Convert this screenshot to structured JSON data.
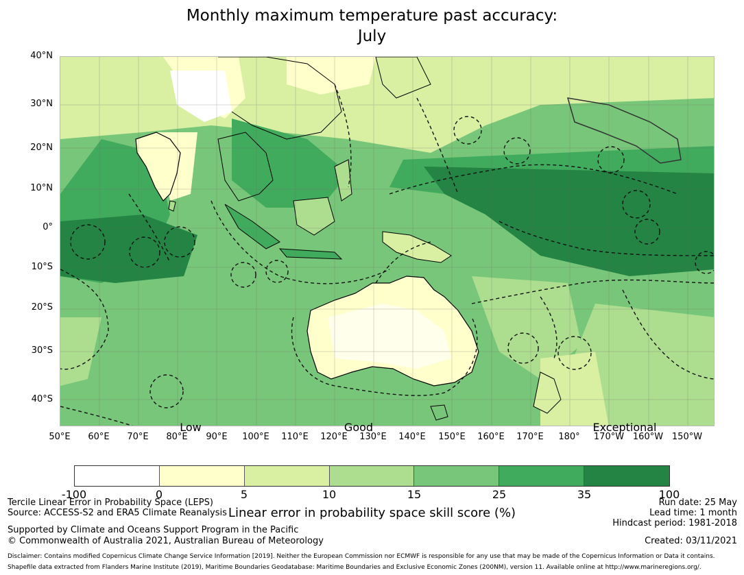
{
  "title": {
    "line1": "Monthly maximum temperature past accuracy:",
    "line2": "July"
  },
  "map": {
    "lat_labels": [
      "40°N",
      "30°N",
      "20°N",
      "10°N",
      "0°",
      "10°S",
      "20°S",
      "30°S",
      "40°S"
    ],
    "lon_labels": [
      "50°E",
      "60°E",
      "70°E",
      "80°E",
      "90°E",
      "100°E",
      "110°E",
      "120°E",
      "130°E",
      "140°E",
      "150°E",
      "160°E",
      "170°E",
      "180°",
      "170°W",
      "160°W",
      "150°W"
    ],
    "band_labels": [
      "Low",
      "Good",
      "Exceptional"
    ],
    "palette": {
      "white": "#ffffff",
      "pale_yellow": "#ffffcc",
      "light_green": "#d9f0a3",
      "mid_light_green": "#addd8e",
      "mid_green": "#78c679",
      "green": "#41ab5d",
      "dark_green": "#238443",
      "land_line": "#000000"
    }
  },
  "colorbar": {
    "ticks": [
      "-100",
      "0",
      "5",
      "10",
      "15",
      "25",
      "35",
      "100"
    ],
    "colors": [
      "#ffffff",
      "#ffffcc",
      "#d9f0a3",
      "#addd8e",
      "#78c679",
      "#41ab5d",
      "#238443"
    ],
    "label": "Linear error in probability space skill score (%)"
  },
  "footer": {
    "left1": "Tercile Linear Error in Probability Space (LEPS)",
    "left2": "Source: ACCESS-S2 and ERA5 Climate Reanalysis",
    "left3": "Supported by Climate and Oceans Support Program in the Pacific",
    "left4": "© Commonwealth of Australia 2021, Australian Bureau of Meteorology",
    "right1": "Run date: 25 May",
    "right2": "Lead time: 1 month",
    "right3": "Hindcast period: 1981-2018",
    "right4": "Created: 03/11/2021",
    "disclaimer1": "Disclaimer: Contains modified Copernicus Climate Change Service Information [2019]. Neither the European Commission nor ECMWF is responsible for any use that may be made of the Copernicus Information or Data it contains.",
    "disclaimer2": "Shapefile data extracted from Flanders Marine Institute (2019), Maritime Boundaries Geodatabase: Maritime Boundaries and Exclusive Economic Zones (200NM), version 11. Available online at http://www.marineregions.org/."
  }
}
